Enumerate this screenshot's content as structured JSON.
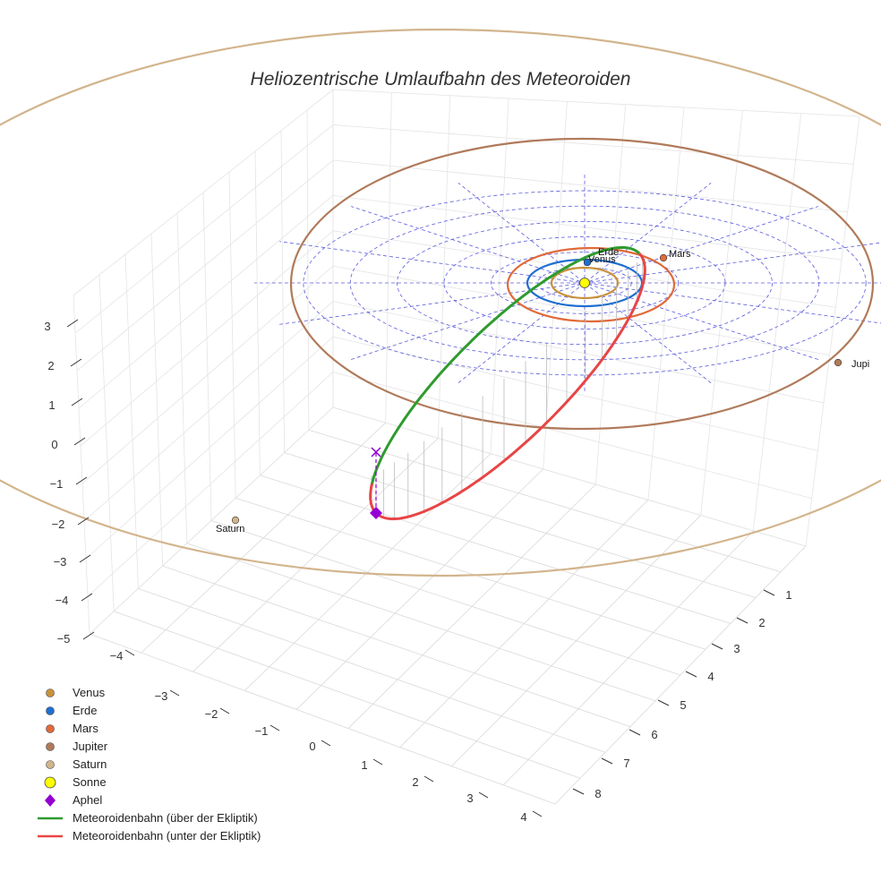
{
  "chart_data": {
    "type": "line",
    "title": "Heliozentrische Umlaufbahn des Meteoroiden",
    "xlabel": "",
    "ylabel": "",
    "zlabel": "",
    "grid": true,
    "legend_position": "bottom-left",
    "x_ticks": [
      "−4",
      "−3",
      "−2",
      "−1",
      "0",
      "1",
      "2",
      "3",
      "4"
    ],
    "y_ticks": [
      "1",
      "2",
      "3",
      "4",
      "5",
      "6",
      "7",
      "8"
    ],
    "z_ticks": [
      "3",
      "2",
      "1",
      "0",
      "−1",
      "−2",
      "−3",
      "−4",
      "−5"
    ],
    "planets": [
      {
        "name": "Venus",
        "legend": "Venus",
        "label": "Venus",
        "orbit_radius_au": 0.72,
        "color": "#c9913a"
      },
      {
        "name": "Erde",
        "legend": "Erde",
        "label": "Erde",
        "orbit_radius_au": 1.0,
        "color": "#1f6fd1"
      },
      {
        "name": "Mars",
        "legend": "Mars",
        "label": "Mars",
        "orbit_radius_au": 1.52,
        "color": "#e06a3a"
      },
      {
        "name": "Jupiter",
        "legend": "Jupiter",
        "label": "Jupi",
        "orbit_radius_au": 5.2,
        "color": "#b07a5a"
      },
      {
        "name": "Saturn",
        "legend": "Saturn",
        "label": "Saturn",
        "orbit_radius_au": 9.54,
        "color": "#d2b48c"
      }
    ],
    "sun": {
      "legend": "Sonne",
      "color": "#ffff00"
    },
    "aphel": {
      "legend": "Aphel",
      "color": "#9400d3"
    },
    "series": [
      {
        "name": "Meteoroidenbahn (über der Ekliptik)",
        "color": "#2e9b2e"
      },
      {
        "name": "Meteoroidenbahn (unter der Ekliptik)",
        "color": "#e84545"
      }
    ]
  }
}
